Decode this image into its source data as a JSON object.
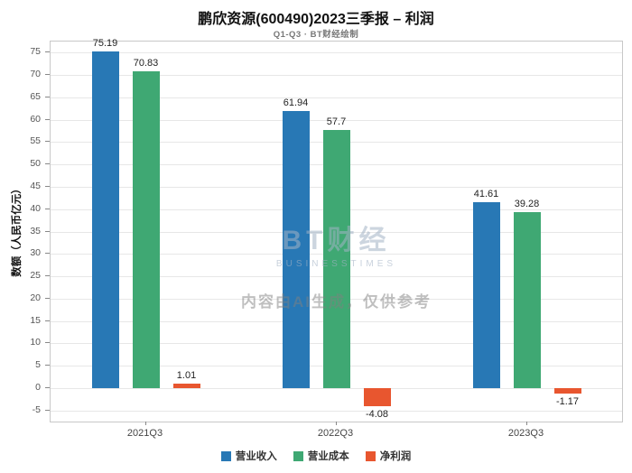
{
  "chart_data": {
    "type": "bar",
    "title": "鹏欣资源(600490)2023三季报 – 利润",
    "subtitle": "Q1-Q3 · BT财经绘制",
    "categories": [
      "2021Q3",
      "2022Q3",
      "2023Q3"
    ],
    "series": [
      {
        "name": "营业收入",
        "color": "#2878b5",
        "values": [
          75.19,
          61.94,
          41.61
        ]
      },
      {
        "name": "营业成本",
        "color": "#3fa873",
        "values": [
          70.83,
          57.7,
          39.28
        ]
      },
      {
        "name": "净利润",
        "color": "#e8562f",
        "values": [
          1.01,
          -4.08,
          -1.17
        ]
      }
    ],
    "xlabel": "",
    "ylabel": "数额（人民币亿元）",
    "ylim": [
      -7.5,
      77.5
    ],
    "yticks": [
      -5,
      0,
      5,
      10,
      15,
      20,
      25,
      30,
      35,
      40,
      45,
      50,
      55,
      60,
      65,
      70,
      75
    ],
    "grid": true,
    "legend_position": "bottom"
  },
  "watermark": {
    "logo_text": "BT财经",
    "logo_sub": "BUSINESSTIMES",
    "notice": "内容由AI生成，仅供参考"
  }
}
